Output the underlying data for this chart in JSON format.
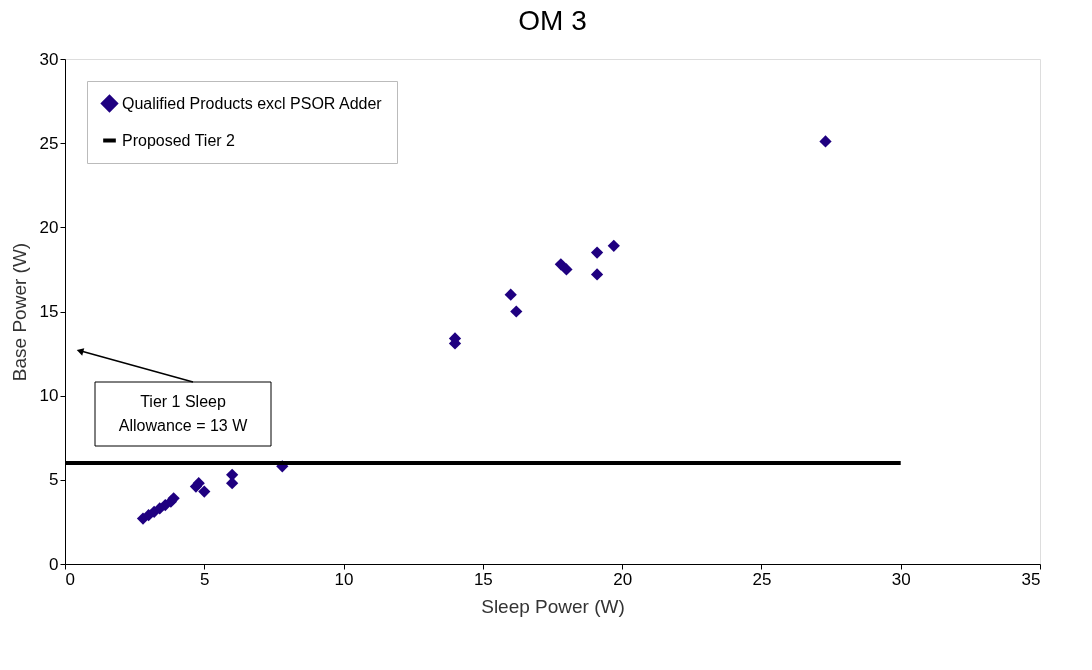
{
  "chart_data": {
    "type": "scatter",
    "title": "OM 3",
    "xlabel": "Sleep Power (W)",
    "ylabel": "Base Power (W)",
    "xlim": [
      0,
      35
    ],
    "xticks": [
      0,
      5,
      10,
      15,
      20,
      25,
      30,
      35
    ],
    "ylim": [
      0,
      30
    ],
    "yticks": [
      0,
      5,
      10,
      15,
      20,
      25,
      30
    ],
    "grid": false,
    "legend": "top left",
    "marker": "diamond",
    "series": [
      {
        "name": "Qualified Products excl PSOR Adder",
        "color": "#1f0080",
        "x": [
          2.8,
          3.0,
          3.2,
          3.4,
          3.6,
          3.8,
          3.9,
          4.7,
          4.8,
          5.0,
          6.0,
          6.0,
          7.8,
          14.0,
          14.0,
          16.0,
          16.2,
          17.8,
          18.0,
          19.1,
          19.1,
          19.7,
          27.3
        ],
        "values": [
          2.7,
          2.9,
          3.1,
          3.3,
          3.5,
          3.7,
          3.9,
          4.6,
          4.8,
          4.3,
          5.3,
          4.8,
          5.8,
          13.4,
          13.1,
          16.0,
          15.0,
          17.8,
          17.5,
          18.5,
          17.2,
          18.9,
          25.1
        ]
      },
      {
        "name": "Proposed Tier 2",
        "type": "line",
        "marker": "none",
        "color": "#000000",
        "x": [
          0,
          30
        ],
        "values": [
          6,
          6
        ]
      }
    ],
    "annotations": [
      "Tier 1 Sleep\nAllowance = 13 W"
    ]
  }
}
